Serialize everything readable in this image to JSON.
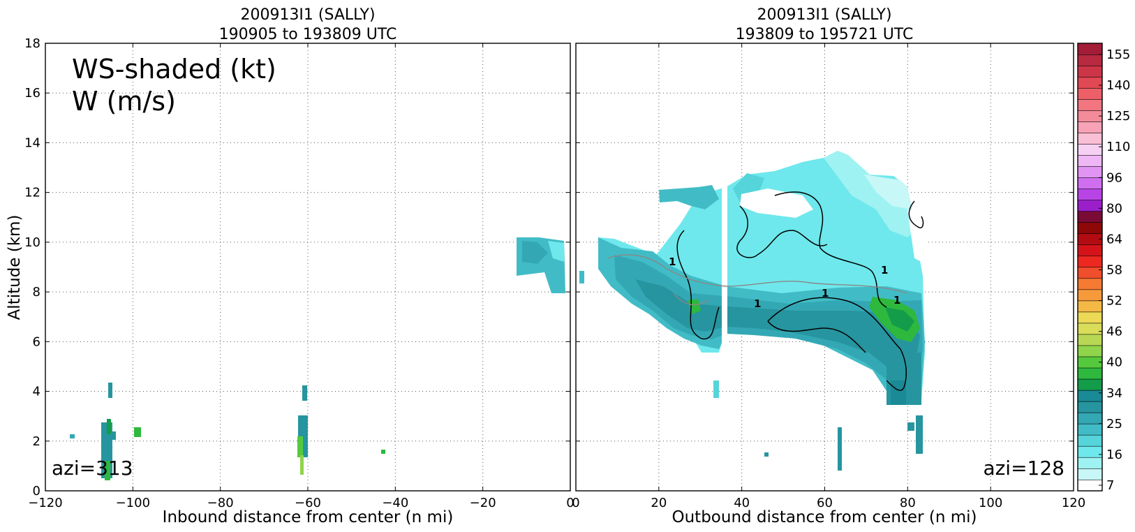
{
  "chart_data": [
    {
      "type": "heatmap",
      "title_line1": "200913I1 (SALLY)",
      "title_line2": "190905 to 193809 UTC",
      "xlabel": "Inbound distance from center (n mi)",
      "ylabel": "Altitude (km)",
      "xlim": [
        -120,
        0
      ],
      "ylim": [
        0,
        18
      ],
      "xticks": [
        -120,
        -100,
        -80,
        -60,
        -40,
        -20,
        0
      ],
      "yticks": [
        0,
        2,
        4,
        6,
        8,
        10,
        12,
        14,
        16,
        18
      ],
      "annotation_line1": "WS-shaded (kt)",
      "annotation_line2": "W (m/s)",
      "azi_label": "azi=313",
      "grid": true
    },
    {
      "type": "heatmap",
      "title_line1": "200913I1 (SALLY)",
      "title_line2": "193809 to 195721 UTC",
      "xlabel": "Outbound distance from center (n mi)",
      "xlim": [
        0,
        120
      ],
      "ylim": [
        0,
        18
      ],
      "xticks": [
        0,
        20,
        40,
        60,
        80,
        100,
        120
      ],
      "azi_label": "azi=128",
      "contour_label": "1",
      "grid": true
    }
  ],
  "colorbar": {
    "labels": [
      "7",
      "16",
      "25",
      "34",
      "40",
      "46",
      "52",
      "58",
      "64",
      "80",
      "96",
      "110",
      "125",
      "140",
      "155"
    ],
    "colors": [
      "#ffffff",
      "#c8f7f7",
      "#9ff2f2",
      "#6ee8ec",
      "#55d4da",
      "#41bcc6",
      "#33a8b4",
      "#26959f",
      "#1a8a96",
      "#139c4a",
      "#2eb83e",
      "#55c93c",
      "#8fd44a",
      "#b8d855",
      "#d9dd5a",
      "#ecd956",
      "#f4b945",
      "#f79a3c",
      "#f47a33",
      "#f04e2c",
      "#ec2820",
      "#d4141a",
      "#b20c12",
      "#8e0808",
      "#7a0b35",
      "#9a1fc9",
      "#b944e6",
      "#cf6ff0",
      "#e194f3",
      "#efb6f5",
      "#f6d0f3",
      "#f9bfd4",
      "#f7a2b6",
      "#f48b9b",
      "#f17680",
      "#ec5f67",
      "#e04853",
      "#cc3546",
      "#b72a40",
      "#a31c38"
    ]
  }
}
